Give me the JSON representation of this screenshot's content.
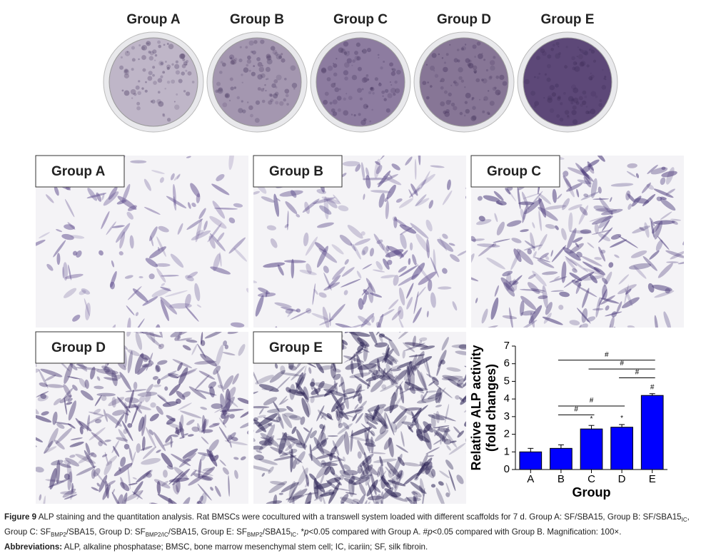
{
  "dishes": {
    "labels": [
      "Group A",
      "Group B",
      "Group C",
      "Group D",
      "Group E"
    ],
    "colors": [
      "#bfb6c8",
      "#a497b0",
      "#8d7ca0",
      "#877696",
      "#5d4878"
    ]
  },
  "micrographs": {
    "labels": [
      "Group A",
      "Group B",
      "Group C",
      "Group D",
      "Group E"
    ],
    "colors": [
      "#6b5a96",
      "#5e4e8c",
      "#4f3f7e",
      "#44356f",
      "#2f2658"
    ],
    "density": [
      150,
      230,
      300,
      420,
      620
    ]
  },
  "chart_data": {
    "type": "bar",
    "ylabel": [
      "Relative ALP activity",
      "(fold changes)"
    ],
    "xlabel": "Group",
    "categories": [
      "A",
      "B",
      "C",
      "D",
      "E"
    ],
    "values": [
      1.0,
      1.2,
      2.3,
      2.4,
      4.2
    ],
    "errors": [
      0.2,
      0.2,
      0.2,
      0.15,
      0.1
    ],
    "marks_above": [
      null,
      null,
      "*",
      "*",
      "#"
    ],
    "color": "#0000ff",
    "ylim": [
      0,
      7
    ],
    "yticks": [
      0,
      1,
      2,
      3,
      4,
      5,
      6,
      7
    ],
    "brackets": [
      {
        "from": "B",
        "to": "C",
        "y": 3.1,
        "label": "#"
      },
      {
        "from": "B",
        "to": "D",
        "y": 3.6,
        "label": "#"
      },
      {
        "from": "D",
        "to": "E",
        "y": 5.2,
        "label": "#"
      },
      {
        "from": "C",
        "to": "E",
        "y": 5.7,
        "label": "#"
      },
      {
        "from": "B",
        "to": "E",
        "y": 6.2,
        "label": "#"
      }
    ]
  },
  "caption": {
    "label": "Figure 9",
    "parts": [
      {
        "text": " ALP staining and the quantitation analysis. Rat BMSCs were cocultured with a transwell system loaded with different scaffolds for 7 d. Group A: SF/SBA15, Group B: SF/SBA15",
        "style": "normal"
      },
      {
        "text": "IC",
        "style": "sub"
      },
      {
        "text": ", Group C: SF",
        "style": "normal"
      },
      {
        "text": "BMP2",
        "style": "sub"
      },
      {
        "text": "/SBA15, Group D: SF",
        "style": "normal"
      },
      {
        "text": "BMP2/IC",
        "style": "sub"
      },
      {
        "text": "/SBA15, Group E: SF",
        "style": "normal"
      },
      {
        "text": "BMP2",
        "style": "sub"
      },
      {
        "text": "/SBA15",
        "style": "normal"
      },
      {
        "text": "IC",
        "style": "sub"
      },
      {
        "text": ". *",
        "style": "normal"
      },
      {
        "text": "p",
        "style": "italic"
      },
      {
        "text": "<0.05 compared with Group A. #",
        "style": "normal"
      },
      {
        "text": "p",
        "style": "italic"
      },
      {
        "text": "<0.05 compared with Group B. Magnification: 100×.",
        "style": "normal"
      }
    ],
    "abbreviations_label": "Abbreviations:",
    "abbreviations": " ALP, alkaline phosphatase; BMSC, bone marrow mesenchymal stem cell; IC, icariin; SF, silk fibroin."
  }
}
